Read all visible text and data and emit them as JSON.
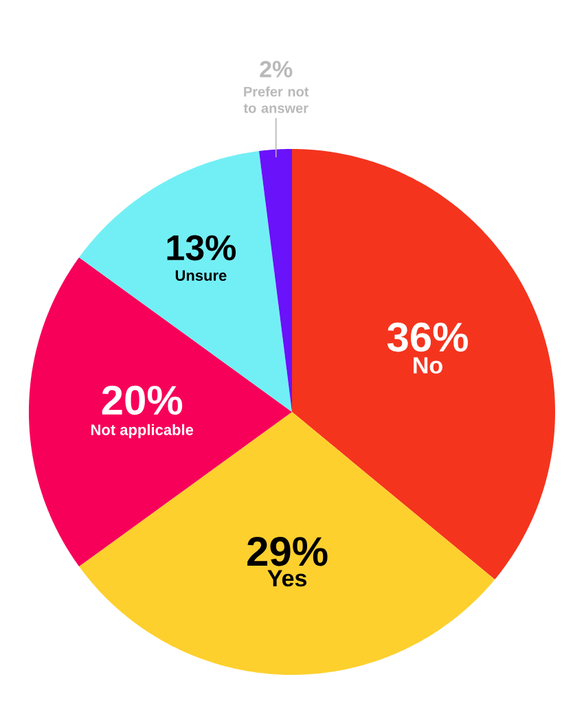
{
  "chart_data": {
    "type": "pie",
    "categories": [
      "No",
      "Yes",
      "Not applicable",
      "Unsure",
      "Prefer not to answer"
    ],
    "values": [
      36,
      29,
      20,
      13,
      2
    ],
    "value_labels": [
      "36%",
      "29%",
      "20%",
      "13%",
      "2%"
    ],
    "colors": [
      "#f5341e",
      "#fdd02e",
      "#f7005a",
      "#72eff5",
      "#6a12f9"
    ]
  }
}
